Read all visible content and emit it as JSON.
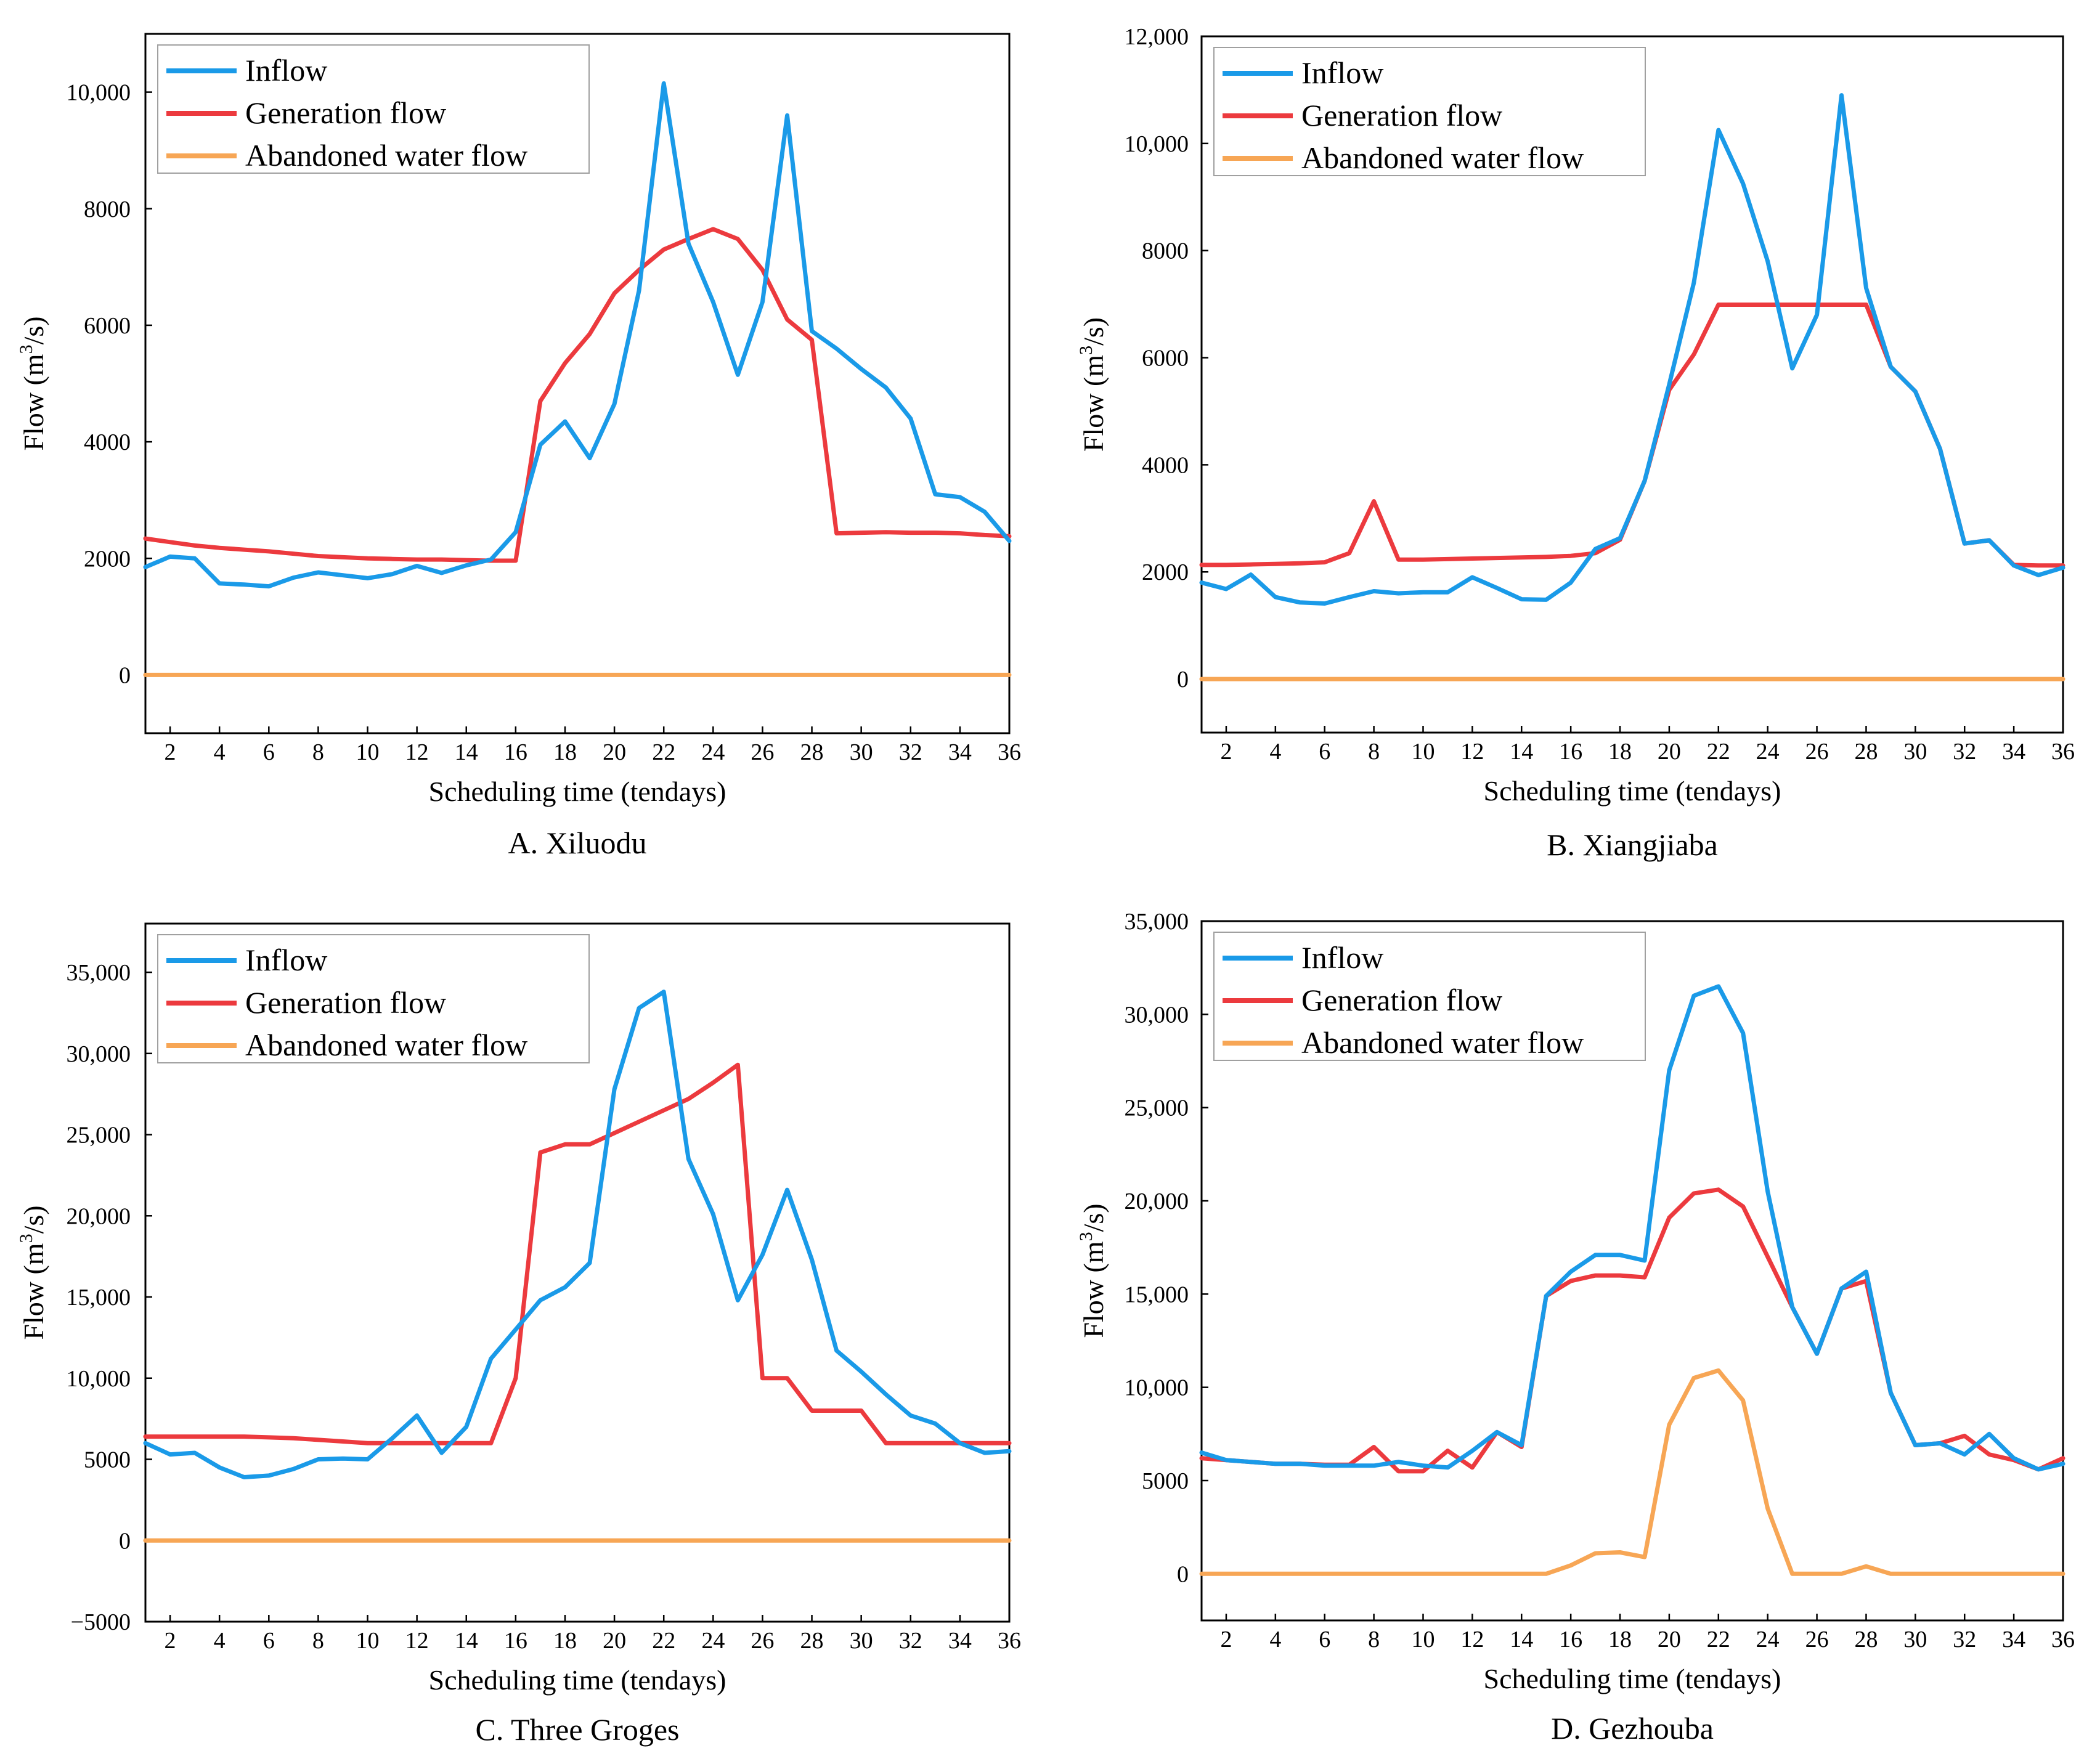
{
  "colors": {
    "inflow": "#1a9ae8",
    "generation": "#ec3a3e",
    "abandoned": "#f7a655"
  },
  "chart_data": [
    {
      "type": "line",
      "caption": "A. Xiluodu",
      "xlabel": "Scheduling time (tendays)",
      "ylabel_main": "Flow (m",
      "ylabel_sup": "3",
      "ylabel_end": "/s)",
      "xlim": [
        1,
        36
      ],
      "ylim": [
        -1000,
        11000
      ],
      "xticks": [
        2,
        4,
        6,
        8,
        10,
        12,
        14,
        16,
        18,
        20,
        22,
        24,
        26,
        28,
        30,
        32,
        34,
        36
      ],
      "yticks": [
        {
          "value": 0,
          "label": "0"
        },
        {
          "value": 2000,
          "label": "2000"
        },
        {
          "value": 4000,
          "label": "4000"
        },
        {
          "value": 6000,
          "label": "6000"
        },
        {
          "value": 8000,
          "label": "8000"
        },
        {
          "value": 10000,
          "label": "10,000"
        }
      ],
      "legend_position": "top-left",
      "series": [
        {
          "name": "Inflow",
          "key": "inflow",
          "values": [
            1850,
            2030,
            2000,
            1570,
            1550,
            1520,
            1670,
            1760,
            1710,
            1660,
            1730,
            1870,
            1750,
            1880,
            1980,
            2450,
            3950,
            4350,
            3720,
            4650,
            6600,
            10150,
            7400,
            6400,
            5150,
            6400,
            9600,
            5900,
            5600,
            5250,
            4930,
            4400,
            3100,
            3050,
            2800,
            2300
          ]
        },
        {
          "name": "Generation flow",
          "key": "generation",
          "values": [
            2340,
            2280,
            2220,
            2180,
            2150,
            2120,
            2080,
            2040,
            2020,
            2000,
            1990,
            1980,
            1980,
            1970,
            1960,
            1960,
            4700,
            5350,
            5850,
            6550,
            6950,
            7300,
            7480,
            7650,
            7480,
            6950,
            6100,
            5750,
            2430,
            2440,
            2450,
            2440,
            2440,
            2430,
            2400,
            2380
          ]
        },
        {
          "name": "Abandoned water flow",
          "key": "abandoned",
          "values": [
            0,
            0,
            0,
            0,
            0,
            0,
            0,
            0,
            0,
            0,
            0,
            0,
            0,
            0,
            0,
            0,
            0,
            0,
            0,
            0,
            0,
            0,
            0,
            0,
            0,
            0,
            0,
            0,
            0,
            0,
            0,
            0,
            0,
            0,
            0,
            0
          ]
        }
      ]
    },
    {
      "type": "line",
      "caption": "B. Xiangjiaba",
      "xlabel": "Scheduling time (tendays)",
      "ylabel_main": "Flow (m",
      "ylabel_sup": "3",
      "ylabel_end": "/s)",
      "xlim": [
        1,
        36
      ],
      "ylim": [
        -1000,
        12000
      ],
      "xticks": [
        2,
        4,
        6,
        8,
        10,
        12,
        14,
        16,
        18,
        20,
        22,
        24,
        26,
        28,
        30,
        32,
        34,
        36
      ],
      "yticks": [
        {
          "value": 0,
          "label": "0"
        },
        {
          "value": 2000,
          "label": "2000"
        },
        {
          "value": 4000,
          "label": "4000"
        },
        {
          "value": 6000,
          "label": "6000"
        },
        {
          "value": 8000,
          "label": "8000"
        },
        {
          "value": 10000,
          "label": "10,000"
        },
        {
          "value": 12000,
          "label": "12,000"
        }
      ],
      "legend_position": "top-left",
      "series": [
        {
          "name": "Inflow",
          "key": "inflow",
          "values": [
            1800,
            1680,
            1950,
            1530,
            1430,
            1410,
            1530,
            1640,
            1600,
            1620,
            1620,
            1900,
            1700,
            1490,
            1480,
            1800,
            2430,
            2630,
            3700,
            5500,
            7400,
            10250,
            9250,
            7800,
            5800,
            6800,
            10900,
            7300,
            5830,
            5370,
            4300,
            2530,
            2590,
            2120,
            1940,
            2080
          ]
        },
        {
          "name": "Generation flow",
          "key": "generation",
          "values": [
            2130,
            2130,
            2140,
            2150,
            2160,
            2180,
            2350,
            3320,
            2230,
            2230,
            2240,
            2250,
            2260,
            2270,
            2280,
            2300,
            2350,
            2600,
            3700,
            5400,
            6060,
            6990,
            6990,
            6990,
            6990,
            6990,
            6990,
            6990,
            5830,
            5370,
            4300,
            2530,
            2590,
            2130,
            2120,
            2120
          ]
        },
        {
          "name": "Abandoned water flow",
          "key": "abandoned",
          "values": [
            0,
            0,
            0,
            0,
            0,
            0,
            0,
            0,
            0,
            0,
            0,
            0,
            0,
            0,
            0,
            0,
            0,
            0,
            0,
            0,
            0,
            0,
            0,
            0,
            0,
            0,
            0,
            0,
            0,
            0,
            0,
            0,
            0,
            0,
            0,
            0
          ]
        }
      ]
    },
    {
      "type": "line",
      "caption": "C. Three Groges",
      "xlabel": "Scheduling time (tendays)",
      "ylabel_main": "Flow (m",
      "ylabel_sup": "3",
      "ylabel_end": "/s)",
      "xlim": [
        1,
        36
      ],
      "ylim": [
        -5000,
        38000
      ],
      "xticks": [
        2,
        4,
        6,
        8,
        10,
        12,
        14,
        16,
        18,
        20,
        22,
        24,
        26,
        28,
        30,
        32,
        34,
        36
      ],
      "yticks": [
        {
          "value": -5000,
          "label": "−5000"
        },
        {
          "value": 0,
          "label": "0"
        },
        {
          "value": 5000,
          "label": "5000"
        },
        {
          "value": 10000,
          "label": "10,000"
        },
        {
          "value": 15000,
          "label": "15,000"
        },
        {
          "value": 20000,
          "label": "20,000"
        },
        {
          "value": 25000,
          "label": "25,000"
        },
        {
          "value": 30000,
          "label": "30,000"
        },
        {
          "value": 35000,
          "label": "35,000"
        }
      ],
      "legend_position": "top-left",
      "series": [
        {
          "name": "Inflow",
          "key": "inflow",
          "values": [
            6000,
            5300,
            5400,
            4500,
            3900,
            4000,
            4400,
            5000,
            5050,
            5000,
            6300,
            7700,
            5400,
            7000,
            11200,
            13000,
            14800,
            15600,
            17100,
            27800,
            32800,
            33800,
            23500,
            20100,
            14800,
            17600,
            21600,
            17300,
            11700,
            10400,
            9000,
            7700,
            7200,
            6000,
            5400,
            5500
          ]
        },
        {
          "name": "Generation flow",
          "key": "generation",
          "values": [
            6400,
            6400,
            6400,
            6400,
            6400,
            6350,
            6300,
            6200,
            6100,
            6000,
            6000,
            6000,
            6000,
            6000,
            6000,
            10000,
            23900,
            24400,
            24400,
            25100,
            25800,
            26500,
            27200,
            28200,
            29300,
            10000,
            10000,
            8000,
            8000,
            8000,
            6000,
            6000,
            6000,
            6000,
            6000,
            6000
          ]
        },
        {
          "name": "Abandoned water flow",
          "key": "abandoned",
          "values": [
            0,
            0,
            0,
            0,
            0,
            0,
            0,
            0,
            0,
            0,
            0,
            0,
            0,
            0,
            0,
            0,
            0,
            0,
            0,
            0,
            0,
            0,
            0,
            0,
            0,
            0,
            0,
            0,
            0,
            0,
            0,
            0,
            0,
            0,
            0,
            0
          ]
        }
      ]
    },
    {
      "type": "line",
      "caption": "D. Gezhouba",
      "xlabel": "Scheduling time (tendays)",
      "ylabel_main": "Flow (m",
      "ylabel_sup": "3",
      "ylabel_end": "/s)",
      "xlim": [
        1,
        36
      ],
      "ylim": [
        -2500,
        35000
      ],
      "xticks": [
        2,
        4,
        6,
        8,
        10,
        12,
        14,
        16,
        18,
        20,
        22,
        24,
        26,
        28,
        30,
        32,
        34,
        36
      ],
      "yticks": [
        {
          "value": 0,
          "label": "0"
        },
        {
          "value": 5000,
          "label": "5000"
        },
        {
          "value": 10000,
          "label": "10,000"
        },
        {
          "value": 15000,
          "label": "15,000"
        },
        {
          "value": 20000,
          "label": "20,000"
        },
        {
          "value": 25000,
          "label": "25,000"
        },
        {
          "value": 30000,
          "label": "30,000"
        },
        {
          "value": 35000,
          "label": "35,000"
        }
      ],
      "legend_position": "top-left",
      "series": [
        {
          "name": "Inflow",
          "key": "inflow",
          "values": [
            6500,
            6100,
            6000,
            5900,
            5900,
            5800,
            5800,
            5800,
            6000,
            5800,
            5700,
            6600,
            7600,
            6900,
            14900,
            16200,
            17100,
            17100,
            16800,
            27000,
            31000,
            31500,
            29000,
            20500,
            14300,
            11800,
            15300,
            16200,
            9700,
            6900,
            7000,
            6400,
            7500,
            6200,
            5600,
            5900
          ]
        },
        {
          "name": "Generation flow",
          "key": "generation",
          "values": [
            6200,
            6100,
            6000,
            5900,
            5900,
            5850,
            5850,
            6800,
            5500,
            5500,
            6600,
            5700,
            7600,
            6800,
            14900,
            15700,
            16000,
            16000,
            15900,
            19100,
            20400,
            20600,
            19700,
            17000,
            14300,
            11800,
            15300,
            15700,
            9700,
            6900,
            7000,
            7400,
            6400,
            6100,
            5600,
            6200
          ]
        },
        {
          "name": "Abandoned water flow",
          "key": "abandoned",
          "values": [
            0,
            0,
            0,
            0,
            0,
            0,
            0,
            0,
            0,
            0,
            0,
            0,
            0,
            0,
            0,
            450,
            1100,
            1150,
            900,
            8000,
            10500,
            10900,
            9300,
            3500,
            0,
            0,
            0,
            400,
            0,
            0,
            0,
            0,
            0,
            0,
            0,
            0
          ]
        }
      ]
    }
  ]
}
